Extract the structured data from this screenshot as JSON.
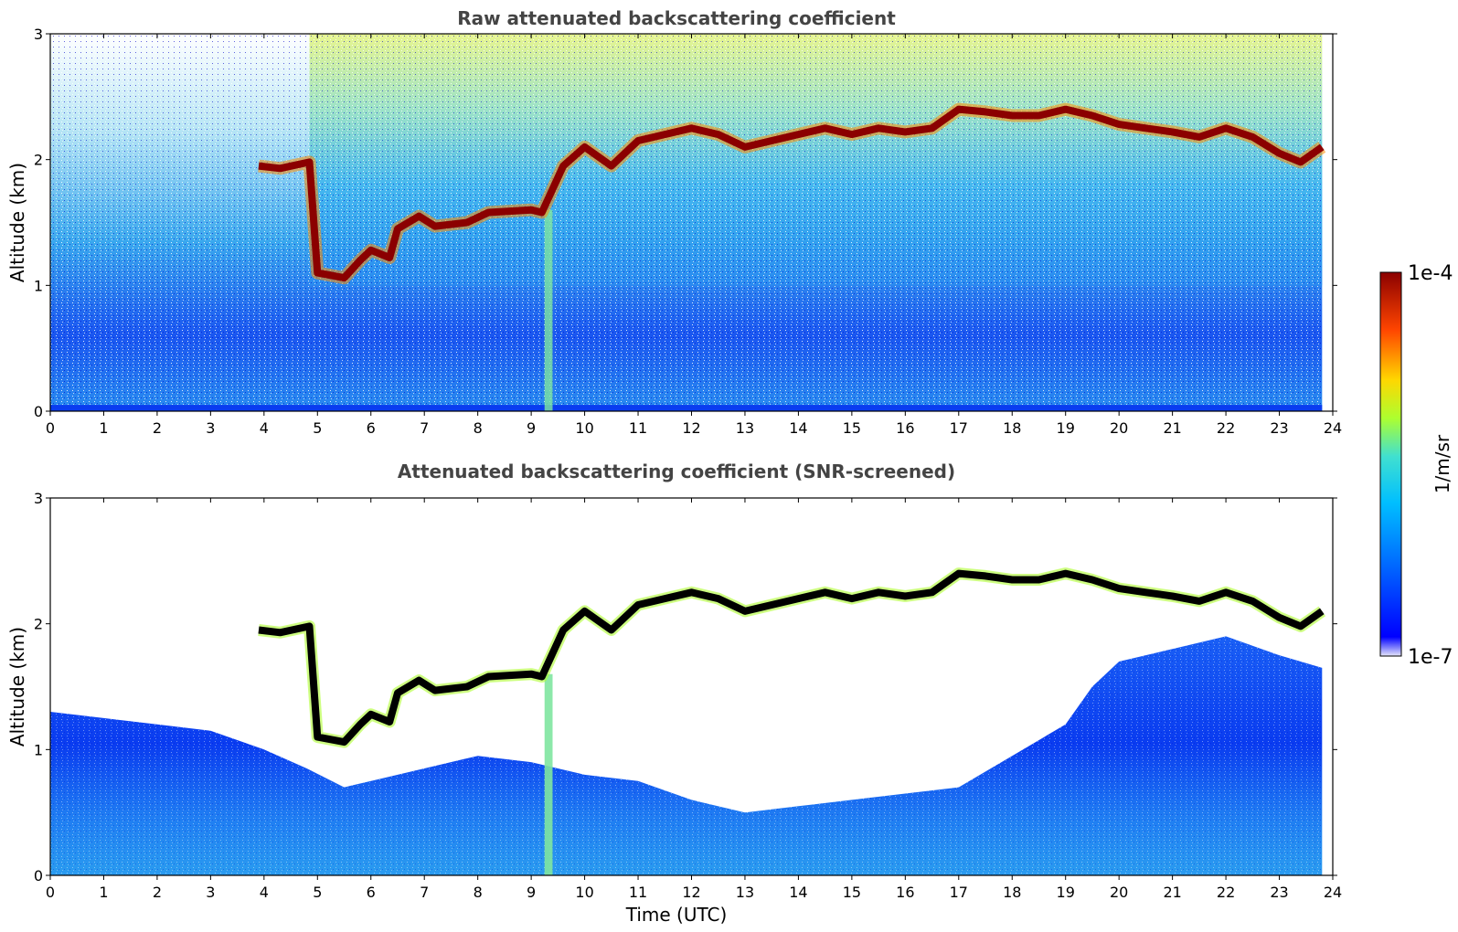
{
  "chart_data": [
    {
      "type": "heatmap",
      "title": "Raw attenuated backscattering coefficient",
      "ylabel": "Altitude (km)",
      "xlabel": "",
      "xlim": [
        0,
        24
      ],
      "ylim": [
        0,
        3
      ],
      "x_ticks": [
        "0",
        "1",
        "2",
        "3",
        "4",
        "5",
        "6",
        "7",
        "8",
        "9",
        "10",
        "11",
        "12",
        "13",
        "14",
        "15",
        "16",
        "17",
        "18",
        "19",
        "20",
        "21",
        "22",
        "23",
        "24"
      ],
      "y_ticks": [
        "0",
        "1",
        "2",
        "3"
      ],
      "data_extent_hours": 23.8,
      "screened": false,
      "layer_top_km": [
        [
          3.9,
          1.95
        ],
        [
          4.3,
          1.93
        ],
        [
          4.85,
          1.98
        ],
        [
          5.0,
          1.1
        ],
        [
          5.5,
          1.06
        ],
        [
          5.8,
          1.2
        ],
        [
          6.0,
          1.28
        ],
        [
          6.35,
          1.22
        ],
        [
          6.5,
          1.45
        ],
        [
          6.9,
          1.55
        ],
        [
          7.2,
          1.47
        ],
        [
          7.8,
          1.5
        ],
        [
          8.2,
          1.58
        ],
        [
          9.0,
          1.6
        ],
        [
          9.2,
          1.58
        ],
        [
          9.6,
          1.95
        ],
        [
          10.0,
          2.1
        ],
        [
          10.5,
          1.95
        ],
        [
          11.0,
          2.15
        ],
        [
          11.5,
          2.2
        ],
        [
          12.0,
          2.25
        ],
        [
          12.5,
          2.2
        ],
        [
          13.0,
          2.1
        ],
        [
          13.5,
          2.15
        ],
        [
          14.0,
          2.2
        ],
        [
          14.5,
          2.25
        ],
        [
          15.0,
          2.2
        ],
        [
          15.5,
          2.25
        ],
        [
          16.0,
          2.22
        ],
        [
          16.5,
          2.25
        ],
        [
          17.0,
          2.4
        ],
        [
          17.5,
          2.38
        ],
        [
          18.0,
          2.35
        ],
        [
          18.5,
          2.35
        ],
        [
          19.0,
          2.4
        ],
        [
          19.5,
          2.35
        ],
        [
          20.0,
          2.28
        ],
        [
          20.5,
          2.25
        ],
        [
          21.0,
          2.22
        ],
        [
          21.5,
          2.18
        ],
        [
          22.0,
          2.25
        ],
        [
          22.5,
          2.18
        ],
        [
          23.0,
          2.05
        ],
        [
          23.4,
          1.98
        ],
        [
          23.8,
          2.1
        ]
      ]
    },
    {
      "type": "heatmap",
      "title": "Attenuated backscattering coefficient (SNR-screened)",
      "ylabel": "Altitude (km)",
      "xlabel": "Time (UTC)",
      "xlim": [
        0,
        24
      ],
      "ylim": [
        0,
        3
      ],
      "x_ticks": [
        "0",
        "1",
        "2",
        "3",
        "4",
        "5",
        "6",
        "7",
        "8",
        "9",
        "10",
        "11",
        "12",
        "13",
        "14",
        "15",
        "16",
        "17",
        "18",
        "19",
        "20",
        "21",
        "22",
        "23",
        "24"
      ],
      "y_ticks": [
        "0",
        "1",
        "2",
        "3"
      ],
      "data_extent_hours": 23.8,
      "screened": true,
      "screen_top_km": [
        [
          0,
          1.3
        ],
        [
          1,
          1.25
        ],
        [
          2,
          1.2
        ],
        [
          3,
          1.15
        ],
        [
          4,
          1.0
        ],
        [
          4.8,
          0.85
        ],
        [
          5.5,
          0.7
        ],
        [
          6,
          0.75
        ],
        [
          7,
          0.85
        ],
        [
          8,
          0.95
        ],
        [
          9,
          0.9
        ],
        [
          9.5,
          0.85
        ],
        [
          10,
          0.8
        ],
        [
          11,
          0.75
        ],
        [
          12,
          0.6
        ],
        [
          13,
          0.5
        ],
        [
          14,
          0.55
        ],
        [
          15,
          0.6
        ],
        [
          16,
          0.65
        ],
        [
          17,
          0.7
        ],
        [
          18,
          0.95
        ],
        [
          19,
          1.2
        ],
        [
          19.5,
          1.5
        ],
        [
          20,
          1.7
        ],
        [
          21,
          1.8
        ],
        [
          22,
          1.9
        ],
        [
          23,
          1.75
        ],
        [
          23.8,
          1.65
        ]
      ]
    }
  ],
  "colorbar": {
    "label": "1/m/sr",
    "max_label": "1e-4",
    "min_label": "1e-7",
    "scale": "log",
    "colormap": "jet",
    "colors": [
      "#e6e6fa",
      "#0000ff",
      "#00bfff",
      "#40e0d0",
      "#adff2f",
      "#ffd700",
      "#ff4500",
      "#8b0000"
    ]
  }
}
